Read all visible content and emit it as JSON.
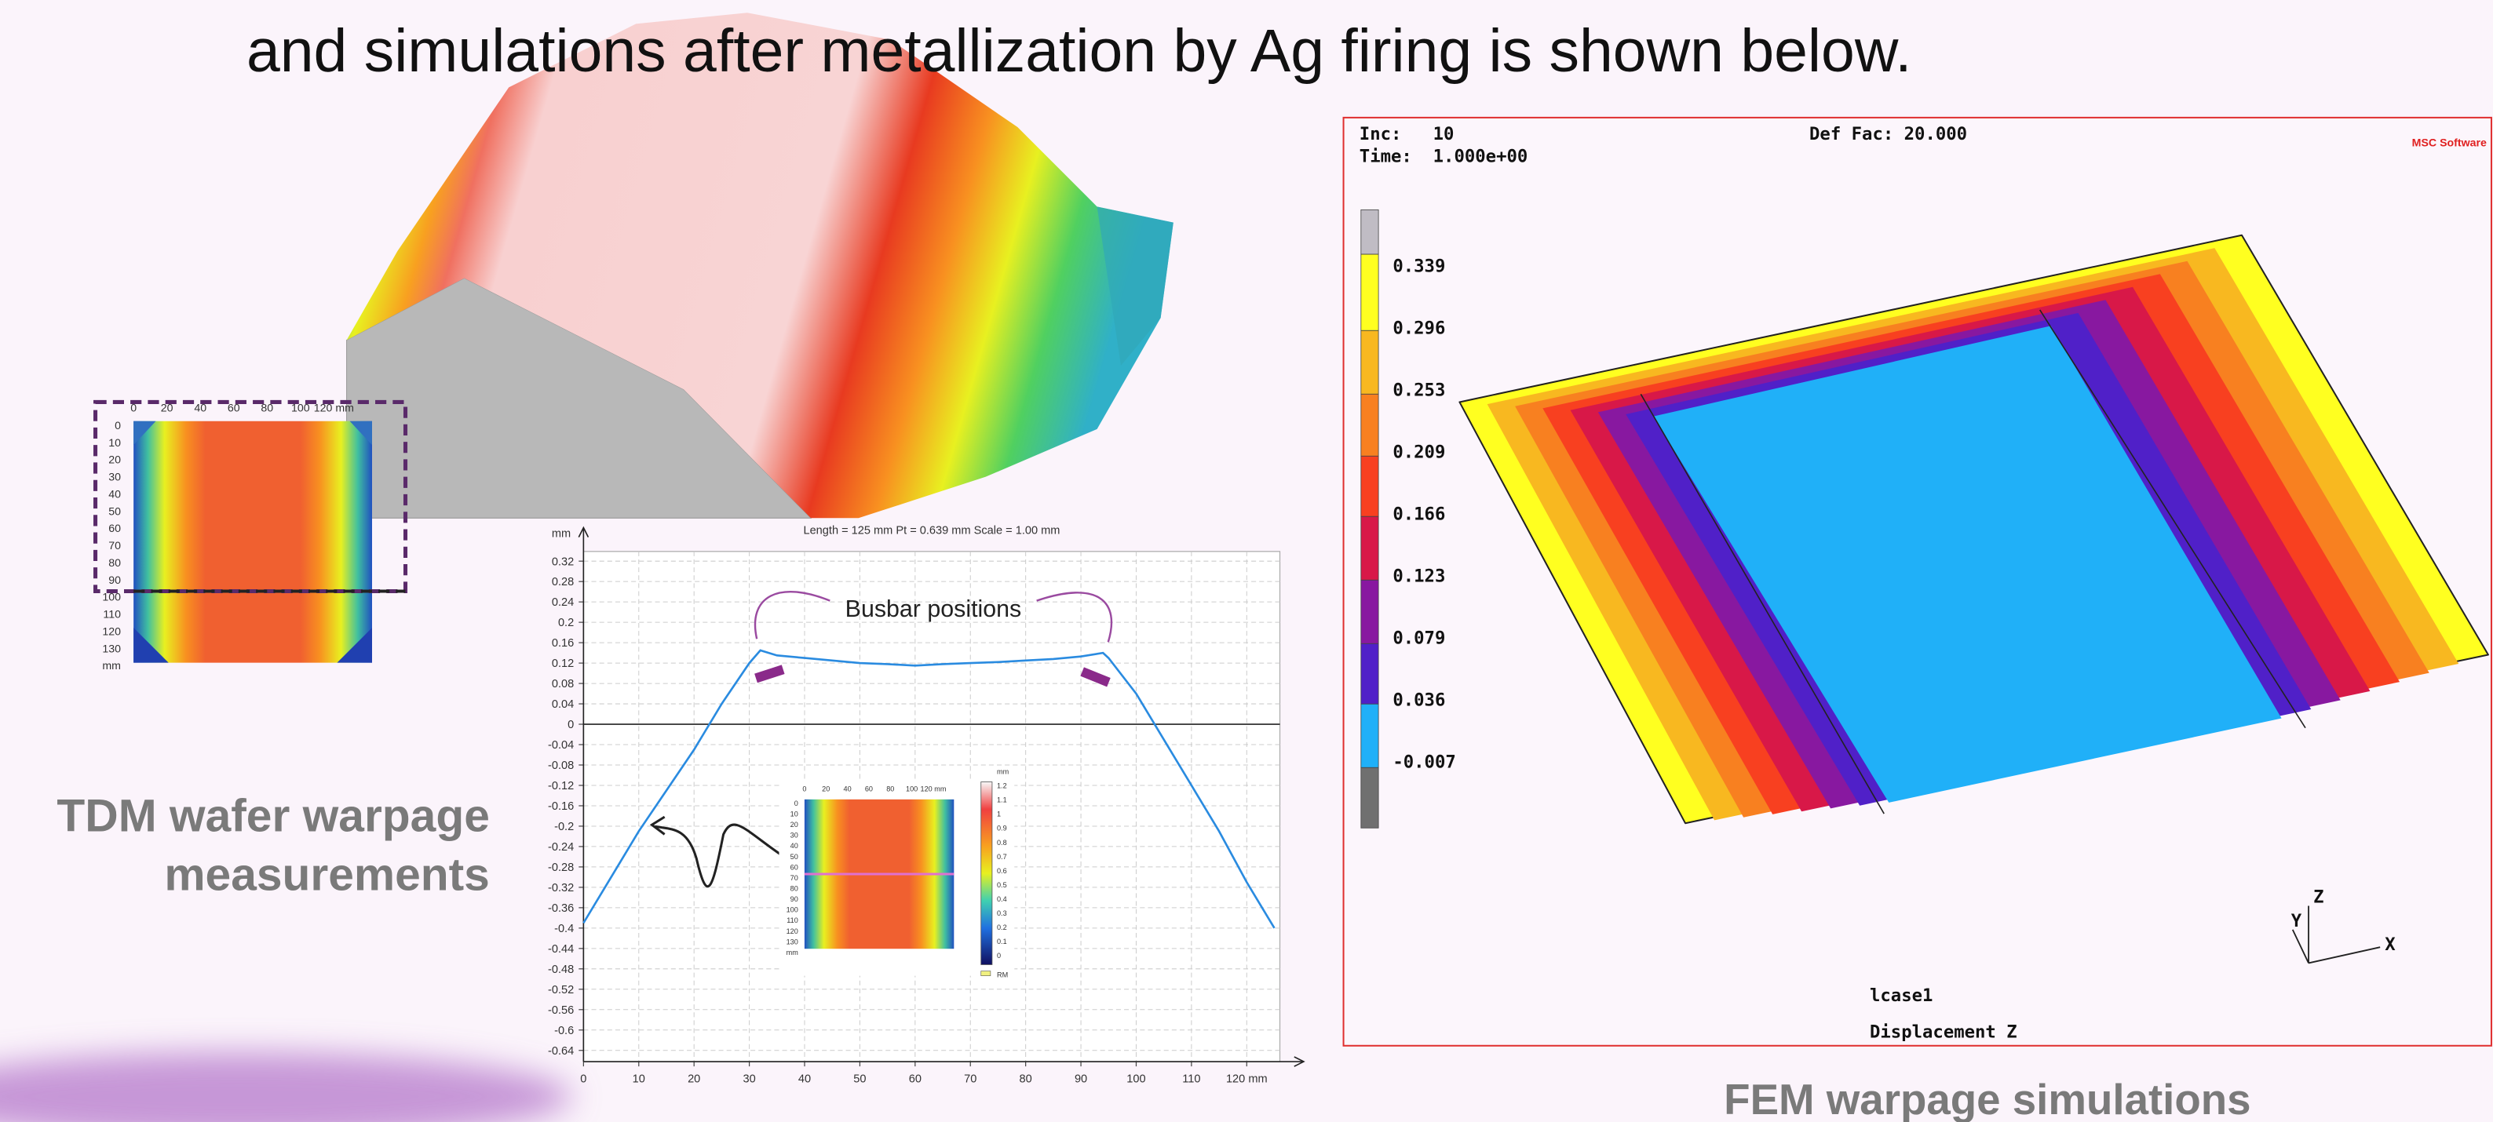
{
  "title": "and simulations after metallization by Ag firing is shown below.",
  "left_caption": [
    "TDM wafer warpage",
    "measurements"
  ],
  "right_caption": "FEM warpage simulations",
  "wafer_map": {
    "x_labels": [
      "0",
      "20",
      "40",
      "60",
      "80",
      "100",
      "120 mm"
    ],
    "y_labels": [
      "0",
      "10",
      "20",
      "30",
      "40",
      "50",
      "60",
      "70",
      "80",
      "90",
      "100",
      "110",
      "120",
      "130",
      "mm"
    ]
  },
  "chart_data": {
    "type": "line",
    "header": "Length = 125 mm  Pt = 0.639 mm  Scale = 1.00 mm",
    "y_unit": "mm",
    "annotation": "Busbar positions",
    "color": "#2a8be0",
    "x": [
      0,
      5,
      10,
      15,
      20,
      25,
      30,
      32,
      35,
      40,
      45,
      50,
      55,
      60,
      65,
      70,
      75,
      80,
      85,
      90,
      94,
      95,
      100,
      105,
      110,
      115,
      120,
      125
    ],
    "values": [
      -0.39,
      -0.3,
      -0.21,
      -0.13,
      -0.05,
      0.04,
      0.12,
      0.145,
      0.135,
      0.13,
      0.125,
      0.12,
      0.118,
      0.115,
      0.118,
      0.12,
      0.122,
      0.125,
      0.128,
      0.133,
      0.14,
      0.13,
      0.06,
      -0.03,
      -0.12,
      -0.21,
      -0.31,
      -0.4
    ],
    "xlim": [
      0,
      126
    ],
    "ylim": [
      -0.662,
      0.339
    ],
    "xticks": [
      0,
      10,
      20,
      30,
      40,
      50,
      60,
      70,
      80,
      90,
      100,
      110,
      {
        "value": 120,
        "label": "120 mm"
      }
    ],
    "yticks": [
      0.32,
      0.28,
      0.24,
      0.2,
      0.16,
      0.12,
      0.08,
      0.04,
      0,
      -0.04,
      -0.08,
      -0.12,
      -0.16,
      -0.2,
      -0.24,
      -0.28,
      -0.32,
      -0.36,
      -0.4,
      -0.44,
      -0.48,
      -0.52,
      -0.56,
      -0.6,
      -0.64
    ],
    "grid": true
  },
  "inset_map": {
    "x_labels": [
      "0",
      "20",
      "40",
      "60",
      "80",
      "100",
      "120 mm"
    ],
    "y_labels": [
      "0",
      "10",
      "20",
      "30",
      "40",
      "50",
      "60",
      "70",
      "80",
      "90",
      "100",
      "110",
      "120",
      "130",
      "mm"
    ],
    "colorbar_unit": "mm",
    "colorbar_labels": [
      "1.2",
      "1.1",
      "1",
      "0.9",
      "0.8",
      "0.7",
      "0.6",
      "0.5",
      "0.4",
      "0.3",
      "0.2",
      "0.1",
      "0"
    ],
    "colorbar_note": "RM"
  },
  "fem": {
    "header_lines": [
      "Inc:   10",
      "Time:  1.000e+00"
    ],
    "def_fac": "Def Fac: 20.000",
    "logo": "MSC Software",
    "legend_values": [
      "0.339",
      "0.296",
      "0.253",
      "0.209",
      "0.166",
      "0.123",
      "0.079",
      "0.036",
      "-0.007"
    ],
    "legend_colors": [
      "#c0bcc4",
      "#ffff20",
      "#f8b820",
      "#f88020",
      "#f84020",
      "#d81848",
      "#8818a0",
      "#5020c8",
      "#20b0f8",
      "#707070"
    ],
    "axis_labels": [
      "Z",
      "Y",
      "X"
    ],
    "footer_lines": [
      "lcase1",
      "Displacement Z"
    ]
  }
}
